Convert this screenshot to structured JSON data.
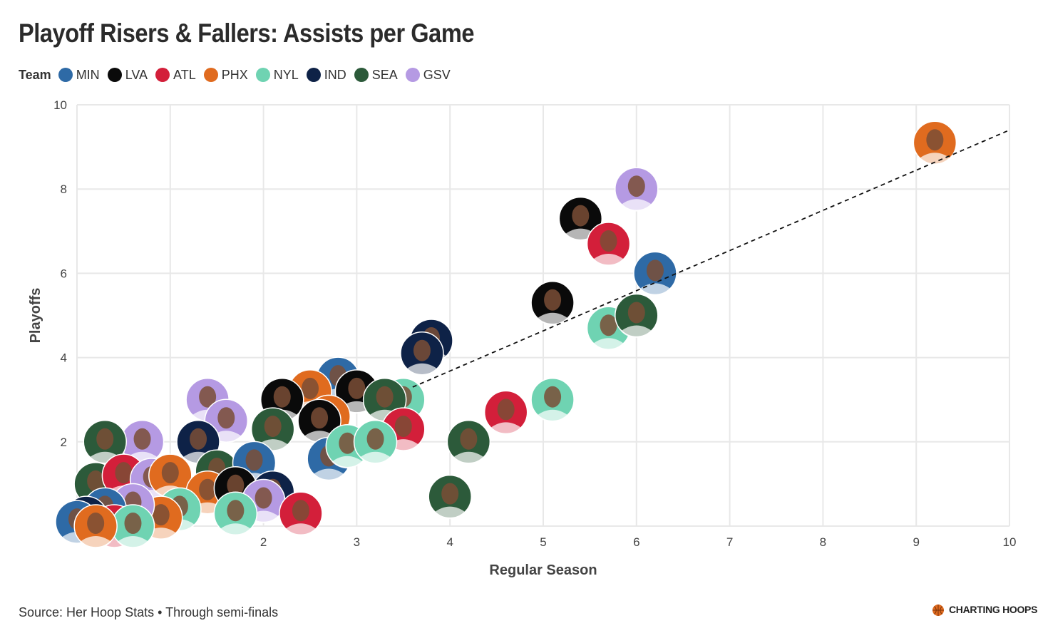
{
  "title": "Playoff Risers & Fallers: Assists per Game",
  "legend": {
    "title": "Team",
    "items": [
      {
        "label": "MIN",
        "color": "#2e6aa6"
      },
      {
        "label": "LVA",
        "color": "#0a0a0a"
      },
      {
        "label": "ATL",
        "color": "#d31f3a"
      },
      {
        "label": "PHX",
        "color": "#e06b1f"
      },
      {
        "label": "NYL",
        "color": "#6fd3b2"
      },
      {
        "label": "IND",
        "color": "#0e2247"
      },
      {
        "label": "SEA",
        "color": "#2c5a3a"
      },
      {
        "label": "GSV",
        "color": "#b59ae3"
      }
    ]
  },
  "footer": "Source: Her Hoop Stats • Through semi-finals",
  "brand": "CHARTING HOOPS",
  "chart_data": {
    "type": "scatter",
    "xlabel": "Regular Season",
    "ylabel": "Playoffs",
    "xlim": [
      0,
      10
    ],
    "ylim": [
      0,
      10
    ],
    "xticks": [
      "2",
      "3",
      "4",
      "5",
      "6",
      "7",
      "8",
      "9",
      "10"
    ],
    "yticks": [
      "2",
      "4",
      "6",
      "8",
      "10"
    ],
    "grid": true,
    "reference_line": {
      "style": "dashed",
      "from": [
        3.6,
        3.3
      ],
      "to": [
        10,
        9.4
      ]
    },
    "points": [
      {
        "x": 9.2,
        "y": 9.1,
        "team": "PHX"
      },
      {
        "x": 6.0,
        "y": 8.0,
        "team": "GSV"
      },
      {
        "x": 5.4,
        "y": 7.3,
        "team": "LVA"
      },
      {
        "x": 5.7,
        "y": 6.7,
        "team": "ATL"
      },
      {
        "x": 6.2,
        "y": 6.0,
        "team": "MIN"
      },
      {
        "x": 5.1,
        "y": 5.3,
        "team": "LVA"
      },
      {
        "x": 5.7,
        "y": 4.7,
        "team": "NYL"
      },
      {
        "x": 6.0,
        "y": 5.0,
        "team": "SEA"
      },
      {
        "x": 3.8,
        "y": 4.4,
        "team": "IND"
      },
      {
        "x": 3.7,
        "y": 4.1,
        "team": "IND"
      },
      {
        "x": 5.1,
        "y": 3.0,
        "team": "NYL"
      },
      {
        "x": 4.6,
        "y": 2.7,
        "team": "ATL"
      },
      {
        "x": 4.2,
        "y": 2.0,
        "team": "SEA"
      },
      {
        "x": 4.0,
        "y": 0.7,
        "team": "SEA"
      },
      {
        "x": 2.8,
        "y": 3.5,
        "team": "MIN"
      },
      {
        "x": 2.5,
        "y": 3.2,
        "team": "PHX"
      },
      {
        "x": 2.2,
        "y": 3.0,
        "team": "LVA"
      },
      {
        "x": 1.4,
        "y": 3.0,
        "team": "GSV"
      },
      {
        "x": 1.6,
        "y": 2.5,
        "team": "GSV"
      },
      {
        "x": 3.0,
        "y": 3.2,
        "team": "LVA"
      },
      {
        "x": 3.5,
        "y": 3.0,
        "team": "NYL"
      },
      {
        "x": 3.3,
        "y": 3.0,
        "team": "SEA"
      },
      {
        "x": 2.7,
        "y": 2.6,
        "team": "PHX"
      },
      {
        "x": 3.5,
        "y": 2.3,
        "team": "ATL"
      },
      {
        "x": 2.1,
        "y": 2.3,
        "team": "SEA"
      },
      {
        "x": 2.6,
        "y": 2.5,
        "team": "LVA"
      },
      {
        "x": 2.7,
        "y": 1.6,
        "team": "MIN"
      },
      {
        "x": 2.9,
        "y": 1.9,
        "team": "NYL"
      },
      {
        "x": 3.2,
        "y": 2.0,
        "team": "NYL"
      },
      {
        "x": 1.3,
        "y": 2.0,
        "team": "IND"
      },
      {
        "x": 0.7,
        "y": 2.0,
        "team": "GSV"
      },
      {
        "x": 0.3,
        "y": 2.0,
        "team": "SEA"
      },
      {
        "x": 1.5,
        "y": 1.3,
        "team": "SEA"
      },
      {
        "x": 1.9,
        "y": 1.5,
        "team": "MIN"
      },
      {
        "x": 0.2,
        "y": 1.0,
        "team": "SEA"
      },
      {
        "x": 0.5,
        "y": 1.2,
        "team": "ATL"
      },
      {
        "x": 0.8,
        "y": 1.1,
        "team": "GSV"
      },
      {
        "x": 1.0,
        "y": 1.2,
        "team": "PHX"
      },
      {
        "x": 1.4,
        "y": 0.8,
        "team": "PHX"
      },
      {
        "x": 1.7,
        "y": 0.9,
        "team": "LVA"
      },
      {
        "x": 2.1,
        "y": 0.8,
        "team": "IND"
      },
      {
        "x": 2.0,
        "y": 0.6,
        "team": "GSV"
      },
      {
        "x": 2.4,
        "y": 0.3,
        "team": "ATL"
      },
      {
        "x": 1.7,
        "y": 0.3,
        "team": "NYL"
      },
      {
        "x": 1.1,
        "y": 0.4,
        "team": "NYL"
      },
      {
        "x": 0.9,
        "y": 0.2,
        "team": "PHX"
      },
      {
        "x": 0.6,
        "y": 0.5,
        "team": "GSV"
      },
      {
        "x": 0.3,
        "y": 0.4,
        "team": "MIN"
      },
      {
        "x": 0.1,
        "y": 0.2,
        "team": "IND"
      },
      {
        "x": 0.0,
        "y": 0.1,
        "team": "MIN"
      },
      {
        "x": 0.4,
        "y": 0.0,
        "team": "ATL"
      },
      {
        "x": 0.6,
        "y": 0.0,
        "team": "NYL"
      },
      {
        "x": 0.2,
        "y": 0.0,
        "team": "PHX"
      }
    ]
  }
}
